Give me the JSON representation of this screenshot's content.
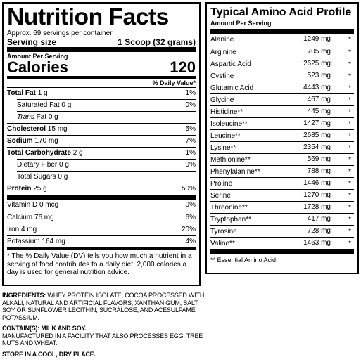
{
  "nutrition": {
    "title": "Nutrition Facts",
    "servings": "Approx. 69 servings per container",
    "serving_size_label": "Serving size",
    "serving_size_value": "1 Scoop (32 grams)",
    "amount_per_serving": "Amount Per Serving",
    "calories_label": "Calories",
    "calories_value": "120",
    "dv_header": "% Daily Value*",
    "rows": [
      {
        "name": "Total Fat",
        "amount": "1 g",
        "dv": "1%"
      },
      {
        "name": "Saturated Fat",
        "amount": "0 g",
        "dv": "0%"
      },
      {
        "name": "Trans",
        "name2": " Fat",
        "amount": "0 g",
        "dv": ""
      },
      {
        "name": "Cholesterol",
        "amount": "15 mg",
        "dv": "5%"
      },
      {
        "name": "Sodium",
        "amount": "170 mg",
        "dv": "7%"
      },
      {
        "name": "Total Carbohydrate",
        "amount": "2 g",
        "dv": "1%"
      },
      {
        "name": "Dietary Fiber",
        "amount": "0 g",
        "dv": "0%"
      },
      {
        "name": "Total Sugars",
        "amount": "0 g",
        "dv": ""
      },
      {
        "name": "Protein",
        "amount": "25 g",
        "dv": "50%"
      },
      {
        "name": "Vitamin D",
        "amount": "0 mcg",
        "dv": "0%"
      },
      {
        "name": "Calcium",
        "amount": "76 mg",
        "dv": "6%"
      },
      {
        "name": "Iron",
        "amount": "4 mg",
        "dv": "20%"
      },
      {
        "name": "Potassium",
        "amount": "164 mg",
        "dv": "4%"
      }
    ],
    "footnote": "* The % Daily Value (DV) tells you how much a nutrient in a serving of food contributes to a daily diet. 2,000 calories a day is used for general nutrition advice."
  },
  "amino": {
    "title": "Typical Amino Acid Profile",
    "subtitle": "Amount Per Serving",
    "rows": [
      {
        "name": "Alanine",
        "value": "1249 mg",
        "mark": "*"
      },
      {
        "name": "Arginine",
        "value": "705 mg",
        "mark": "*"
      },
      {
        "name": "Aspartic Acid",
        "value": "2625 mg",
        "mark": "*"
      },
      {
        "name": "Cystine",
        "value": "523 mg",
        "mark": "*"
      },
      {
        "name": "Glutamic Acid",
        "value": "4443 mg",
        "mark": "*"
      },
      {
        "name": "Glycine",
        "value": "467 mg",
        "mark": "*"
      },
      {
        "name": "Histidine**",
        "value": "445 mg",
        "mark": "*"
      },
      {
        "name": "Isoleucine**",
        "value": "1427 mg",
        "mark": "*"
      },
      {
        "name": "Leucine**",
        "value": "2685 mg",
        "mark": "*"
      },
      {
        "name": "Lysine**",
        "value": "2354 mg",
        "mark": "*"
      },
      {
        "name": "Methionine**",
        "value": "569 mg",
        "mark": "*"
      },
      {
        "name": "Phenylalanine**",
        "value": "788 mg",
        "mark": "*"
      },
      {
        "name": "Proline",
        "value": "1446 mg",
        "mark": "*"
      },
      {
        "name": "Serine",
        "value": "1270 mg",
        "mark": "*"
      },
      {
        "name": "Threonine**",
        "value": "1728 mg",
        "mark": "*"
      },
      {
        "name": "Tryptophan**",
        "value": "417 mg",
        "mark": "*"
      },
      {
        "name": "Tyrosine",
        "value": "728 mg",
        "mark": "*"
      },
      {
        "name": "Valine**",
        "value": "1463 mg",
        "mark": "*"
      }
    ],
    "note": "** Essential Amino Acid"
  },
  "label": {
    "ingredients_label": "INGREDIENTS:",
    "ingredients_text": " WHEY PROTEIN ISOLATE, COCOA PROCESSED WITH ALKALI, NATURAL AND ARTIFICIAL FLAVORS, XANTHAN GUM, SALT, SOY OR SUNFLOWER LECITHIN, SUCRALOSE, AND ACESULFAME POTASSIUM.",
    "contains": "CONTAIN(S): MILK AND SOY.",
    "facility": "MANUFACTURED IN A FACILITY THAT ALSO PROCESSES EGG, TREE NUTS AND WHEAT.",
    "storage": "STORE IN A COOL, DRY PLACE."
  }
}
